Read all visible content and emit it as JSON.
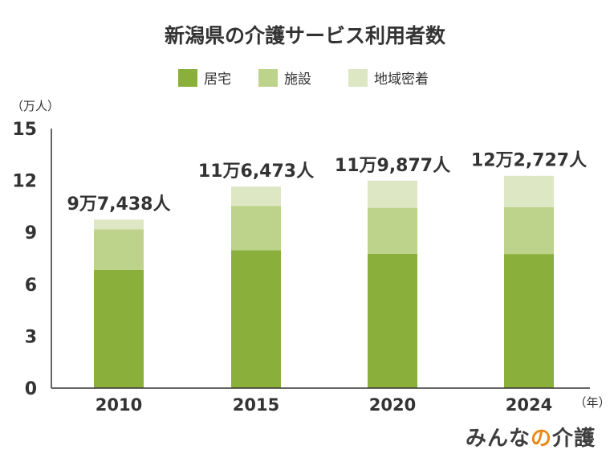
{
  "chart_data": {
    "type": "bar",
    "stacked": true,
    "title": "新潟県の介護サービス利用者数",
    "ylabel": "（万人）",
    "xlabel": "（年）",
    "ylim": [
      0,
      15
    ],
    "yticks": [
      "0",
      "3",
      "6",
      "9",
      "12",
      "15"
    ],
    "categories": [
      "2010",
      "2015",
      "2020",
      "2024"
    ],
    "series": [
      {
        "name": "居宅",
        "color": "#8ab03b",
        "values": [
          6.83,
          7.97,
          7.76,
          7.75
        ]
      },
      {
        "name": "施設",
        "color": "#bdd28a",
        "values": [
          2.35,
          2.55,
          2.66,
          2.7
        ]
      },
      {
        "name": "地域密着",
        "color": "#dde7c4",
        "values": [
          0.56,
          1.13,
          1.57,
          1.82
        ]
      }
    ],
    "totals": [
      9.7438,
      11.6473,
      11.9877,
      12.2727
    ],
    "total_labels": [
      "9万7,438人",
      "11万6,473人",
      "11万9,877人",
      "12万2,727人"
    ]
  },
  "brand": {
    "text": "みんな",
    "accent": "の",
    "suffix": "介護"
  }
}
